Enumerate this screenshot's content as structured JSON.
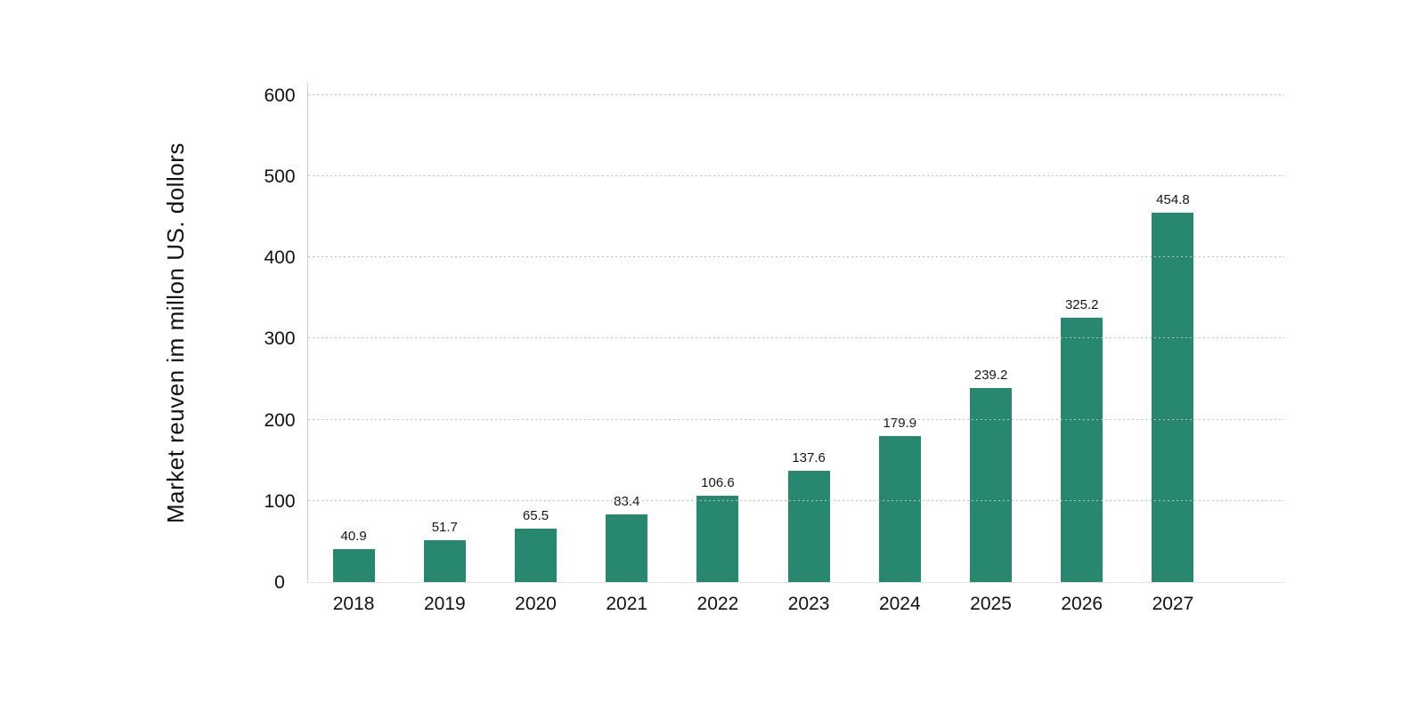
{
  "chart": {
    "y_axis_title": "Market reuven im millon US. dollors"
  },
  "chart_data": {
    "type": "bar",
    "title": "",
    "xlabel": "",
    "ylabel": "Market reuven im millon US. dollors",
    "categories": [
      "2018",
      "2019",
      "2020",
      "2021",
      "2022",
      "2023",
      "2024",
      "2025",
      "2026",
      "2027"
    ],
    "values": [
      40.9,
      51.7,
      65.5,
      83.4,
      106.6,
      137.6,
      179.9,
      239.2,
      325.2,
      454.8
    ],
    "value_labels": [
      "40.9",
      "51.7",
      "65.5",
      "83.4",
      "106.6",
      "137.6",
      "179.9",
      "239.2",
      "325.2",
      "454.8"
    ],
    "ylim": [
      0,
      600
    ],
    "yticks": [
      0,
      100,
      200,
      300,
      400,
      500,
      600
    ],
    "grid": "horizontal-dotted",
    "legend_position": "none",
    "bar_color": "#28876F",
    "grid_color": "#bfbfbf",
    "axis_color": "#d0d0d0",
    "text_color": "#141414",
    "background_color": "#ffffff"
  }
}
